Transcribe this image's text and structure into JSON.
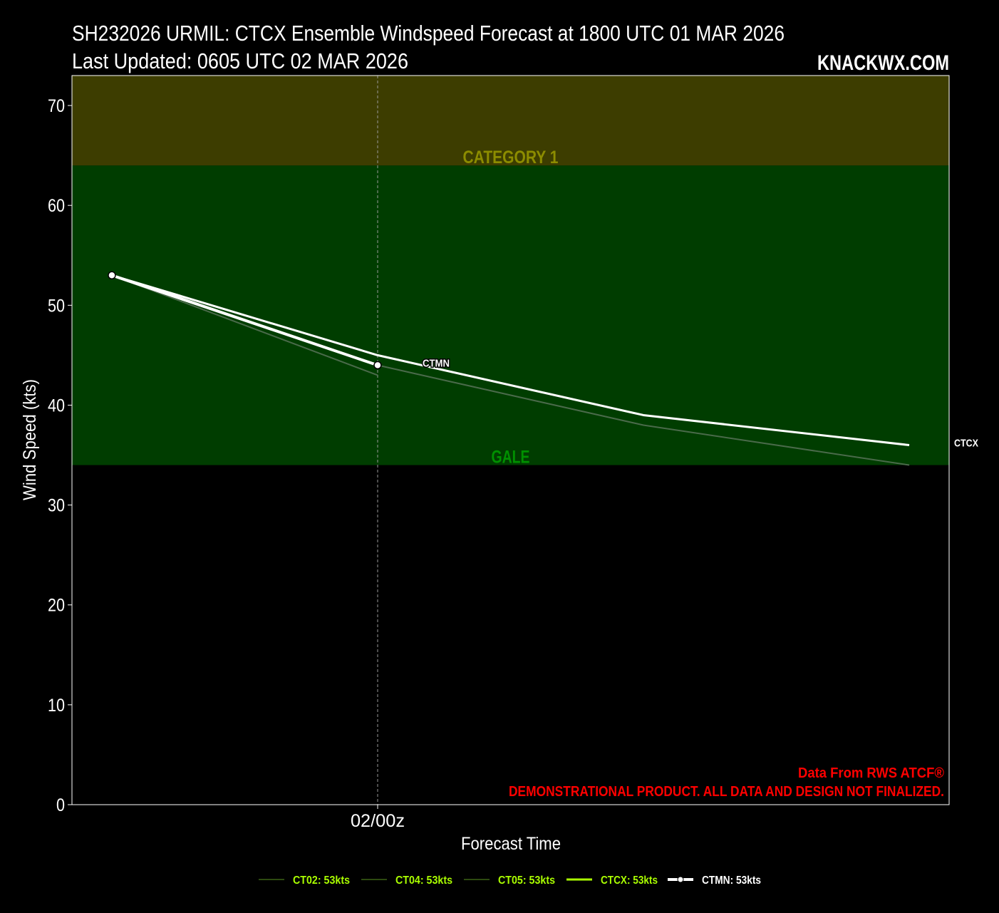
{
  "header": {
    "title": "SH232026 URMIL: CTCX Ensemble Windspeed Forecast at 1800 UTC 01 MAR 2026",
    "updated": "Last Updated: 0605 UTC 02 MAR 2026",
    "brand": "KNACKWX.COM"
  },
  "credits": {
    "line1": "Data From RWS ATCF®",
    "line2": "DEMONSTRATIONAL PRODUCT. ALL DATA AND DESIGN NOT FINALIZED."
  },
  "colors": {
    "cat1_band": "#3d3d00",
    "gale_band": "#003d00",
    "cat1_label": "#8c8c00",
    "gale_label": "#009000",
    "member_line": "#4a6a4a",
    "legend_green": "#aaff00",
    "credit_red": "#ff0000"
  },
  "chart_data": {
    "type": "line",
    "title": "SH232026 URMIL: CTCX Ensemble Windspeed Forecast at 1800 UTC 01 MAR 2026",
    "xlabel": "Forecast Time",
    "ylabel": "Wind Speed (kts)",
    "ylim": [
      0,
      73
    ],
    "xlim_hours": [
      -0.9,
      18.9
    ],
    "yticks": [
      0,
      10,
      20,
      30,
      40,
      50,
      60,
      70
    ],
    "xticks": [
      {
        "hour": 6,
        "label": "02/00z"
      }
    ],
    "bands": [
      {
        "name": "GALE",
        "from": 34,
        "to": 64
      },
      {
        "name": "CATEGORY 1",
        "from": 64,
        "to": 83
      }
    ],
    "series": [
      {
        "name": "CT02",
        "hours": [
          0,
          6
        ],
        "values": [
          53,
          43
        ],
        "legend": "CT02: 53kts",
        "style": "member"
      },
      {
        "name": "CT04",
        "hours": [
          0,
          6,
          12,
          18
        ],
        "values": [
          53,
          44,
          38,
          34
        ],
        "legend": "CT04: 53kts",
        "style": "member"
      },
      {
        "name": "CT05",
        "hours": [
          0,
          6
        ],
        "values": [
          53,
          44
        ],
        "legend": "CT05: 53kts",
        "style": "member"
      },
      {
        "name": "CTCX",
        "hours": [
          0,
          6,
          12,
          18
        ],
        "values": [
          53,
          45,
          39,
          36
        ],
        "legend": "CTCX: 53kts",
        "style": "main",
        "end_label": "CTCX"
      },
      {
        "name": "CTMN",
        "hours": [
          0,
          6
        ],
        "values": [
          53,
          44
        ],
        "legend": "CTMN: 53kts",
        "style": "mean",
        "end_label": "CTMN"
      }
    ],
    "legend_position": "bottom-center"
  }
}
